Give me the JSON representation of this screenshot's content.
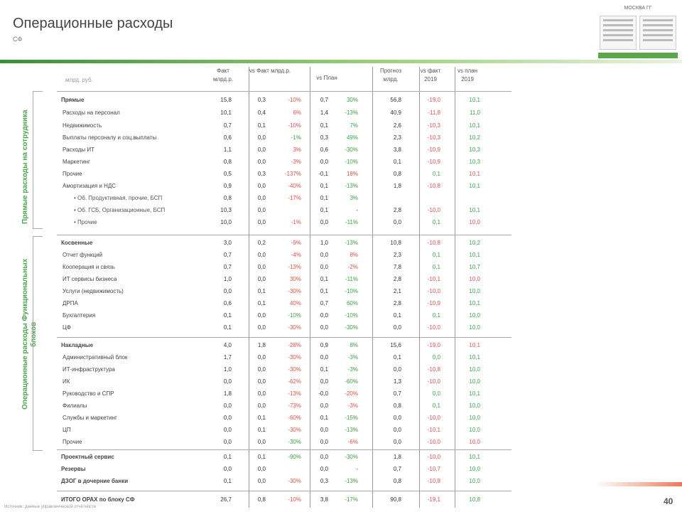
{
  "title": "Операционные расходы",
  "subtitle": "СФ",
  "thumbnail_label": "МОСКВА ГГ",
  "header": {
    "caption": "млрд. руб.",
    "columns": [
      "Факт млрд.р.",
      "vs Факт млрд.р.",
      "vs План",
      "Прогноз млрд.",
      "vs факт 2019",
      "vs план 2019"
    ]
  },
  "groups": [
    "Прямые расходы на сотрудника",
    "Операционные расходы Функциональных блоков"
  ],
  "rows": [
    {
      "label": "Прямые",
      "bold": true,
      "v": [
        "15,8",
        "0,3",
        "-10%",
        "0,7",
        "30%",
        "56,8",
        "-19,0",
        "10,1"
      ],
      "c": [
        "",
        "",
        "neg",
        "",
        "pos",
        "",
        "neg",
        "pos"
      ]
    },
    {
      "label": "Расходы на персонал",
      "v": [
        "10,1",
        "0,4",
        "6%",
        "1,4",
        "-13%",
        "40,9",
        "-11,8",
        "11,0"
      ],
      "c": [
        "",
        "",
        "neg",
        "",
        "pos",
        "",
        "neg",
        "pos"
      ]
    },
    {
      "label": "Недвижимость",
      "v": [
        "0,7",
        "0,1",
        "-10%",
        "0,1",
        "7%",
        "2,6",
        "-10,3",
        "10,1"
      ],
      "c": [
        "",
        "",
        "neg",
        "",
        "pos",
        "",
        "neg",
        "pos"
      ]
    },
    {
      "label": "Выплаты персоналу и соц.выплаты",
      "v": [
        "0,6",
        "0,0",
        "-1%",
        "0,3",
        "49%",
        "2,3",
        "-10,3",
        "10,2"
      ],
      "c": [
        "",
        "",
        "pos",
        "",
        "pos",
        "",
        "neg",
        "pos"
      ]
    },
    {
      "label": "Расходы ИТ",
      "v": [
        "1,1",
        "0,0",
        "3%",
        "0,6",
        "-30%",
        "3,8",
        "-10,9",
        "10,3"
      ],
      "c": [
        "",
        "",
        "neg",
        "",
        "pos",
        "",
        "neg",
        "pos"
      ]
    },
    {
      "label": "Маркетинг",
      "v": [
        "0,8",
        "0,0",
        "-3%",
        "0,0",
        "-10%",
        "0,1",
        "-10,9",
        "10,3"
      ],
      "c": [
        "",
        "",
        "neg",
        "",
        "pos",
        "",
        "neg",
        "pos"
      ]
    },
    {
      "label": "Прочие",
      "v": [
        "0,5",
        "0,3",
        "-137%",
        "-0,1",
        "18%",
        "0,8",
        "0,1",
        "10,1"
      ],
      "c": [
        "",
        "",
        "neg",
        "",
        "neg",
        "",
        "pos",
        "neg"
      ]
    },
    {
      "label": "Амортизация и НДС",
      "v": [
        "0,9",
        "0,0",
        "-40%",
        "0,1",
        "-13%",
        "1,8",
        "-10,8",
        "10,1"
      ],
      "c": [
        "",
        "",
        "neg",
        "",
        "pos",
        "",
        "neg",
        "pos"
      ]
    },
    {
      "label": "•  Об. Продуктивная, прочие, БСП",
      "sub": true,
      "v": [
        "0,8",
        "0,0",
        "-17%",
        "0,1",
        "3%",
        "",
        "",
        ""
      ],
      "c": [
        "",
        "",
        "neg",
        "",
        "pos",
        "",
        "",
        ""
      ]
    },
    {
      "label": "•  Об. ГСБ, Организационные, БСП",
      "sub": true,
      "v": [
        "10,3",
        "0,0",
        "",
        "0,1",
        "-",
        "2,8",
        "-10,0",
        "10,1"
      ],
      "c": [
        "",
        "",
        "",
        "",
        "",
        "",
        "neg",
        "pos"
      ]
    },
    {
      "label": "•  Прочие",
      "sub": true,
      "v": [
        "10,0",
        "0,0",
        "-1%",
        "0,0",
        "-11%",
        "0,0",
        "0,1",
        "10,0"
      ],
      "c": [
        "",
        "",
        "neg",
        "",
        "pos",
        "",
        "pos",
        "neg"
      ]
    },
    {
      "label": "Косвенные",
      "bold": true,
      "v": [
        "3,0",
        "0,2",
        "-9%",
        "1,0",
        "-13%",
        "10,8",
        "-10,8",
        "10,2"
      ],
      "c": [
        "",
        "",
        "neg",
        "",
        "pos",
        "",
        "neg",
        "pos"
      ]
    },
    {
      "label": "Отчет функций",
      "v": [
        "0,7",
        "0,0",
        "-4%",
        "0,0",
        "8%",
        "2,3",
        "0,1",
        "10,1"
      ],
      "c": [
        "",
        "",
        "neg",
        "",
        "neg",
        "",
        "pos",
        "pos"
      ]
    },
    {
      "label": "Кооперация и связь",
      "v": [
        "0,7",
        "0,0",
        "-13%",
        "0,0",
        "-2%",
        "7,8",
        "0,1",
        "10,7"
      ],
      "c": [
        "",
        "",
        "neg",
        "",
        "neg",
        "",
        "pos",
        "pos"
      ]
    },
    {
      "label": "ИТ сервисы бизнеса",
      "v": [
        "1,0",
        "0,0",
        "30%",
        "0,1",
        "-11%",
        "2,8",
        "-10,1",
        "10,0"
      ],
      "c": [
        "",
        "",
        "neg",
        "",
        "pos",
        "",
        "neg",
        "neg"
      ]
    },
    {
      "label": "Услуги (недвижимость)",
      "v": [
        "0,0",
        "0,1",
        "-30%",
        "0,1",
        "-10%",
        "2,1",
        "-10,0",
        "10,0"
      ],
      "c": [
        "",
        "",
        "neg",
        "",
        "pos",
        "",
        "neg",
        "pos"
      ]
    },
    {
      "label": "ДРПА",
      "v": [
        "0,6",
        "0,1",
        "40%",
        "0,7",
        "60%",
        "2,8",
        "-10,9",
        "10,1"
      ],
      "c": [
        "",
        "",
        "neg",
        "",
        "pos",
        "",
        "neg",
        "pos"
      ]
    },
    {
      "label": "Бухгалтерия",
      "v": [
        "0,1",
        "0,0",
        "-10%",
        "0,0",
        "-10%",
        "0,1",
        "0,1",
        "10,0"
      ],
      "c": [
        "",
        "",
        "pos",
        "",
        "pos",
        "",
        "pos",
        "pos"
      ]
    },
    {
      "label": "ЦФ",
      "v": [
        "0,1",
        "0,0",
        "-30%",
        "0,0",
        "-30%",
        "0,0",
        "-10,0",
        "10,0"
      ],
      "c": [
        "",
        "",
        "neg",
        "",
        "pos",
        "",
        "neg",
        "pos"
      ]
    },
    {
      "label": "Накладные",
      "bold": true,
      "v": [
        "4,0",
        "1,8",
        "-28%",
        "0,9",
        "8%",
        "15,6",
        "-19,0",
        "10,1"
      ],
      "c": [
        "",
        "",
        "neg",
        "",
        "pos",
        "",
        "neg",
        "neg"
      ]
    },
    {
      "label": "Административный блок",
      "v": [
        "1,7",
        "0,0",
        "-30%",
        "0,0",
        "-3%",
        "0,1",
        "0,0",
        "10,1"
      ],
      "c": [
        "",
        "",
        "neg",
        "",
        "pos",
        "",
        "pos",
        "pos"
      ]
    },
    {
      "label": "ИТ-инфраструктура",
      "v": [
        "1,0",
        "0,0",
        "-30%",
        "0,1",
        "-3%",
        "0,0",
        "-10,8",
        "10,0"
      ],
      "c": [
        "",
        "",
        "neg",
        "",
        "pos",
        "",
        "neg",
        "pos"
      ]
    },
    {
      "label": "ИК",
      "v": [
        "0,0",
        "0,0",
        "-62%",
        "0,0",
        "-60%",
        "1,3",
        "-10,0",
        "10,0"
      ],
      "c": [
        "",
        "",
        "neg",
        "",
        "pos",
        "",
        "neg",
        "pos"
      ]
    },
    {
      "label": "Руководство и СПР",
      "v": [
        "1,8",
        "0,0",
        "-13%",
        "-0,0",
        "-20%",
        "0,7",
        "0,0",
        "10,1"
      ],
      "c": [
        "",
        "",
        "neg",
        "",
        "neg",
        "",
        "pos",
        "pos"
      ]
    },
    {
      "label": "Филиалы",
      "v": [
        "0,0",
        "0,0",
        "-73%",
        "0,0",
        "-3%",
        "0,8",
        "0,1",
        "10,0"
      ],
      "c": [
        "",
        "",
        "neg",
        "",
        "neg",
        "",
        "pos",
        "pos"
      ]
    },
    {
      "label": "Службы и маркетинг",
      "v": [
        "0,0",
        "0,1",
        "-60%",
        "0,1",
        "-15%",
        "0,0",
        "-10,0",
        "10,0"
      ],
      "c": [
        "",
        "",
        "neg",
        "",
        "pos",
        "",
        "neg",
        "pos"
      ]
    },
    {
      "label": "ЦП",
      "v": [
        "0,0",
        "0,1",
        "-30%",
        "0,0",
        "-13%",
        "0,0",
        "-10,1",
        "10,0"
      ],
      "c": [
        "",
        "",
        "neg",
        "",
        "pos",
        "",
        "neg",
        "pos"
      ]
    },
    {
      "label": "Прочие",
      "v": [
        "0,0",
        "0,0",
        "-30%",
        "0,0",
        "-6%",
        "0,0",
        "-10,0",
        "10,0"
      ],
      "c": [
        "",
        "",
        "pos",
        "",
        "neg",
        "",
        "neg",
        "neg"
      ]
    },
    {
      "label": "Проектный сервис",
      "bold": true,
      "v": [
        "0,1",
        "0,1",
        "-90%",
        "0,0",
        "-30%",
        "1,8",
        "-10,0",
        "10,1"
      ],
      "c": [
        "",
        "",
        "pos",
        "",
        "pos",
        "",
        "neg",
        "pos"
      ]
    },
    {
      "label": "Резервы",
      "bold": true,
      "v": [
        "0,0",
        "0,0",
        "",
        "0,0",
        "-",
        "0,7",
        "-10,7",
        "10,0"
      ],
      "c": [
        "",
        "",
        "",
        "",
        "",
        "",
        "neg",
        "pos"
      ]
    },
    {
      "label": "ДЗОГ в дочерние банки",
      "bold": true,
      "v": [
        "0,1",
        "0,0",
        "-30%",
        "0,3",
        "-13%",
        "0,8",
        "-10,8",
        "10,0"
      ],
      "c": [
        "",
        "",
        "neg",
        "",
        "pos",
        "",
        "neg",
        "pos"
      ]
    },
    {
      "label": "ИТОГО ОРАХ по блоку СФ",
      "bold": true,
      "v": [
        "26,7",
        "0,8",
        "-10%",
        "3,8",
        "-17%",
        "90,8",
        "-19,1",
        "10,8"
      ],
      "c": [
        "",
        "",
        "neg",
        "",
        "pos",
        "",
        "neg",
        "pos"
      ]
    }
  ],
  "footnote": "Источник: данные управленческой отчётности",
  "page_number": "40"
}
